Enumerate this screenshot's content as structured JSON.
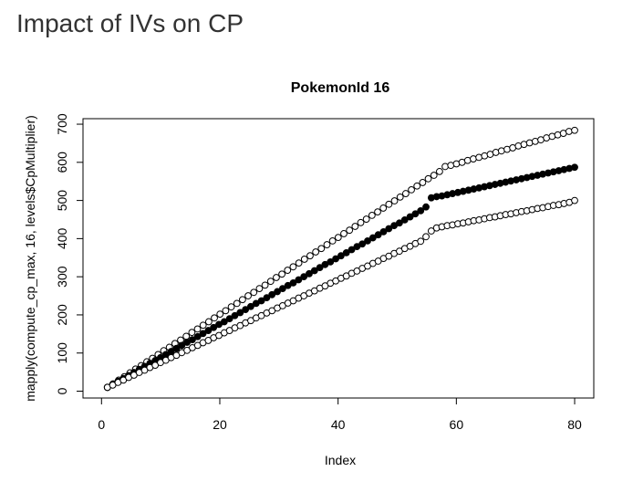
{
  "page": {
    "heading": "Impact of IVs on CP"
  },
  "chart_data": {
    "type": "scatter",
    "title": "PokemonId 16",
    "xlabel": "Index",
    "ylabel": "mapply(compute_cp_max, 16, levels$CpMultiplier)",
    "xlim": [
      1,
      80
    ],
    "ylim": [
      10,
      684
    ],
    "x_ticks": [
      0,
      20,
      40,
      60,
      80
    ],
    "y_ticks": [
      0,
      100,
      200,
      300,
      400,
      500,
      600,
      700
    ],
    "grid": false,
    "legend": "none",
    "series": [
      {
        "marker": "open-circle",
        "values": [
          10,
          19,
          29,
          38,
          48,
          58,
          67,
          77,
          86,
          96,
          106,
          115,
          125,
          134,
          144,
          154,
          163,
          173,
          182,
          192,
          202,
          211,
          221,
          230,
          240,
          250,
          259,
          269,
          278,
          288,
          298,
          307,
          317,
          326,
          336,
          346,
          355,
          365,
          374,
          384,
          394,
          403,
          413,
          422,
          432,
          442,
          451,
          461,
          470,
          480,
          490,
          499,
          509,
          518,
          528,
          538,
          547,
          557,
          566,
          576,
          589,
          592,
          596,
          600,
          605,
          609,
          613,
          617,
          621,
          626,
          630,
          634,
          638,
          643,
          647,
          651,
          655,
          659,
          664,
          668,
          672,
          676,
          681,
          684
        ]
      },
      {
        "marker": "filled-circle",
        "values": [
          10,
          18,
          26,
          33,
          41,
          49,
          57,
          65,
          73,
          80,
          88,
          96,
          104,
          112,
          120,
          128,
          135,
          143,
          151,
          159,
          167,
          175,
          182,
          190,
          198,
          206,
          214,
          222,
          230,
          237,
          245,
          253,
          261,
          269,
          277,
          284,
          292,
          300,
          308,
          316,
          324,
          332,
          339,
          347,
          355,
          363,
          371,
          379,
          386,
          394,
          402,
          410,
          418,
          426,
          434,
          441,
          449,
          457,
          465,
          473,
          483,
          507,
          510,
          512,
          515,
          518,
          521,
          524,
          527,
          530,
          533,
          536,
          539,
          542,
          545,
          548,
          551,
          554,
          557,
          560,
          563,
          566,
          569,
          572,
          575,
          578,
          581,
          584,
          587
        ]
      },
      {
        "marker": "open-circle",
        "values": [
          10,
          16,
          23,
          29,
          36,
          42,
          49,
          55,
          62,
          68,
          75,
          81,
          88,
          94,
          101,
          107,
          114,
          120,
          127,
          133,
          140,
          146,
          153,
          159,
          166,
          172,
          179,
          185,
          192,
          198,
          205,
          211,
          218,
          224,
          231,
          237,
          244,
          250,
          257,
          263,
          270,
          276,
          283,
          289,
          296,
          302,
          309,
          315,
          322,
          328,
          335,
          341,
          348,
          354,
          361,
          367,
          374,
          380,
          387,
          393,
          405,
          420,
          428,
          431,
          434,
          436,
          439,
          441,
          444,
          447,
          449,
          452,
          455,
          457,
          460,
          463,
          465,
          468,
          471,
          473,
          476,
          479,
          481,
          484,
          487,
          489,
          492,
          495,
          500
        ]
      }
    ]
  }
}
